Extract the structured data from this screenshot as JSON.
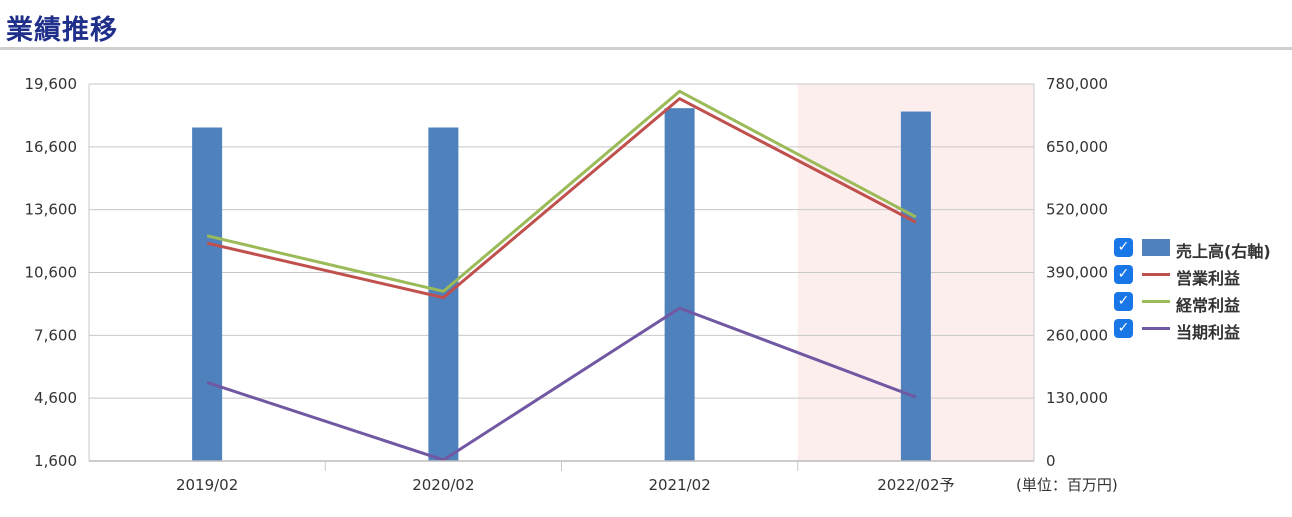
{
  "header": {
    "title": "業績推移"
  },
  "unit_label": "(単位：百万円)",
  "colors": {
    "sales": "#4f81bd",
    "operating": "#c0504d",
    "ordinary": "#9bbb59",
    "net": "#7058a3",
    "forecast_bg": "#fdeeee",
    "grid": "#c8c8c8",
    "checkbox": "#1976e6"
  },
  "legend": {
    "placement": "right",
    "items": [
      {
        "label": "売上高(右軸)",
        "icon": "bar-swatch",
        "checked": true
      },
      {
        "label": "営業利益",
        "icon": "line-swatch",
        "checked": true
      },
      {
        "label": "経常利益",
        "icon": "line-swatch",
        "checked": true
      },
      {
        "label": "当期利益",
        "icon": "line-swatch",
        "checked": true
      }
    ]
  },
  "chart_data": {
    "type": "bar",
    "categories": [
      "2019/02",
      "2020/02",
      "2021/02",
      "2022/02予"
    ],
    "forecast_index": 3,
    "ylim_left": [
      1600,
      19600
    ],
    "yticks_left": [
      "1,600",
      "4,600",
      "7,600",
      "10,600",
      "13,600",
      "16,600",
      "19,600"
    ],
    "ylim_right": [
      0,
      780000
    ],
    "yticks_right": [
      "0",
      "130,000",
      "260,000",
      "390,000",
      "520,000",
      "650,000",
      "780,000"
    ],
    "grid": true,
    "series": [
      {
        "name": "売上高(右軸)",
        "type": "bar",
        "axis": "right",
        "values": [
          690000,
          690000,
          730000,
          723000
        ]
      },
      {
        "name": "営業利益",
        "type": "line",
        "axis": "left",
        "values": [
          12000,
          9400,
          18900,
          13000
        ]
      },
      {
        "name": "経常利益",
        "type": "line",
        "axis": "left",
        "values": [
          12350,
          9700,
          19250,
          13250
        ]
      },
      {
        "name": "当期利益",
        "type": "line",
        "axis": "left",
        "values": [
          5350,
          1650,
          8900,
          4650
        ]
      }
    ]
  }
}
